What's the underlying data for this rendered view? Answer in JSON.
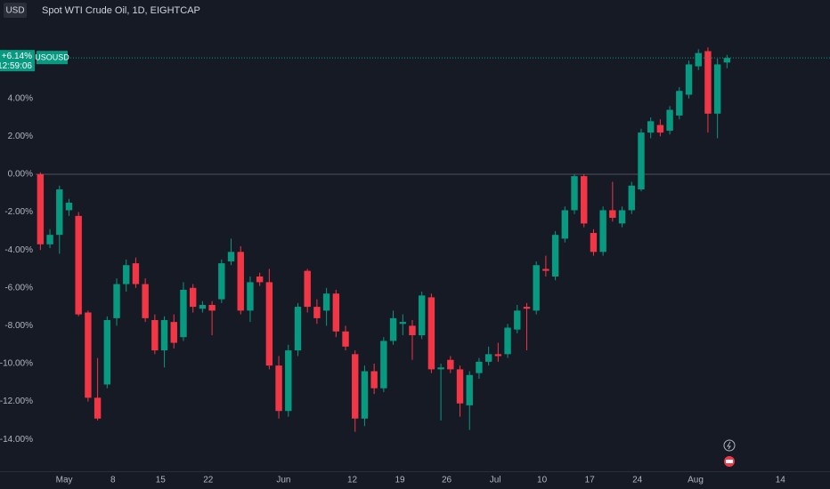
{
  "chart_data": {
    "type": "candlestick",
    "title": "Spot WTI Crude Oil, 1D, EIGHTCAP",
    "currency": "USD",
    "symbol": "USOUSD",
    "last_price": 6.14,
    "last_price_label": "+6.14%",
    "countdown": "12:59:06",
    "up_color": "#089981",
    "down_color": "#f23645",
    "grid": false,
    "ylim": [
      -15.68,
      9.2
    ],
    "yticks": [
      {
        "value": -14,
        "label": "-14.00%"
      },
      {
        "value": -12,
        "label": "-12.00%"
      },
      {
        "value": -10,
        "label": "-10.00%"
      },
      {
        "value": -8,
        "label": "-8.00%"
      },
      {
        "value": -6,
        "label": "-6.00%"
      },
      {
        "value": -4,
        "label": "-4.00%"
      },
      {
        "value": -2,
        "label": "-2.00%"
      },
      {
        "value": 0,
        "label": "0.00%"
      },
      {
        "value": 2,
        "label": "2.00%"
      },
      {
        "value": 4,
        "label": "4.00%"
      }
    ],
    "xlim": [
      -0.5,
      82.8
    ],
    "xticks": [
      {
        "value": 2.5,
        "label": "May"
      },
      {
        "value": 7.6,
        "label": "8"
      },
      {
        "value": 12.6,
        "label": "15"
      },
      {
        "value": 17.6,
        "label": "22"
      },
      {
        "value": 25.5,
        "label": "Jun"
      },
      {
        "value": 32.7,
        "label": "12"
      },
      {
        "value": 37.7,
        "label": "19"
      },
      {
        "value": 42.6,
        "label": "26"
      },
      {
        "value": 47.7,
        "label": "Jul"
      },
      {
        "value": 52.6,
        "label": "10"
      },
      {
        "value": 57.6,
        "label": "17"
      },
      {
        "value": 62.6,
        "label": "24"
      },
      {
        "value": 68.7,
        "label": "Aug"
      },
      {
        "value": 77.6,
        "label": "14"
      }
    ],
    "open": [
      0,
      -3.7,
      -3.2,
      -1.9,
      -2.2,
      -7.3,
      -11.8,
      -11.1,
      -7.6,
      -5.8,
      -4.7,
      -5.8,
      -7.7,
      -9.3,
      -7.8,
      -8.6,
      -6.0,
      -7.1,
      -6.9,
      -6.6,
      -4.6,
      -4.1,
      -7.2,
      -5.4,
      -5.7,
      -10.1,
      -12.5,
      -9.3,
      -5.1,
      -7.0,
      -7.2,
      -6.3,
      -8.3,
      -9.5,
      -12.9,
      -10.4,
      -11.3,
      -8.8,
      -7.9,
      -8.0,
      -8.5,
      -6.5,
      -10.3,
      -9.8,
      -10.3,
      -12.2,
      -10.5,
      -9.9,
      -9.5,
      -9.5,
      -8.2,
      -7.0,
      -7.2,
      -5.0,
      -5.4,
      -3.4,
      -1.9,
      -0.1,
      -3.1,
      -4.1,
      -1.9,
      -2.6,
      -1.9,
      -0.8,
      2.2,
      2.6,
      2.3,
      3.1,
      4.2,
      5.7,
      6.5,
      3.2,
      5.9
    ],
    "high": [
      0.1,
      -2.9,
      -0.6,
      -1.3,
      -2.0,
      -7.2,
      -9.7,
      -7.5,
      -5.5,
      -4.5,
      -4.4,
      -5.5,
      -7.4,
      -7.5,
      -7.4,
      -5.7,
      -5.8,
      -6.7,
      -6.7,
      -4.5,
      -3.4,
      -3.8,
      -5.4,
      -5.2,
      -5.0,
      -9.6,
      -9.0,
      -6.8,
      -5.0,
      -6.6,
      -6.0,
      -6.1,
      -8.0,
      -9.3,
      -10.1,
      -10.0,
      -8.6,
      -7.2,
      -7.4,
      -7.7,
      -6.2,
      -6.3,
      -10.0,
      -9.6,
      -10.1,
      -10.4,
      -9.7,
      -9.1,
      -8.9,
      -7.9,
      -6.9,
      -6.8,
      -4.6,
      -4.3,
      -3.0,
      -1.7,
      0.0,
      0.0,
      -2.9,
      -1.7,
      -0.4,
      -1.7,
      -0.4,
      2.4,
      3.0,
      2.9,
      3.6,
      4.6,
      6.0,
      6.6,
      6.7,
      6.1,
      6.3
    ],
    "low": [
      -4.0,
      -3.9,
      -4.2,
      -2.2,
      -7.5,
      -12.0,
      -13.0,
      -11.3,
      -8.0,
      -6.2,
      -6.0,
      -7.8,
      -9.5,
      -10.2,
      -9.2,
      -8.8,
      -7.3,
      -7.3,
      -8.5,
      -6.8,
      -4.8,
      -7.4,
      -7.8,
      -5.9,
      -10.3,
      -12.9,
      -12.8,
      -9.6,
      -7.3,
      -7.9,
      -8.0,
      -8.6,
      -9.3,
      -13.6,
      -13.3,
      -11.6,
      -11.5,
      -9.0,
      -8.5,
      -9.8,
      -8.7,
      -10.5,
      -13.0,
      -10.5,
      -12.8,
      -13.5,
      -10.8,
      -10.1,
      -9.9,
      -9.7,
      -8.4,
      -9.3,
      -7.4,
      -5.4,
      -5.6,
      -3.6,
      -2.1,
      -2.8,
      -4.3,
      -4.3,
      -2.5,
      -2.8,
      -2.1,
      -0.9,
      1.9,
      2.0,
      2.1,
      2.9,
      4.0,
      5.5,
      2.2,
      1.9,
      5.6
    ],
    "close": [
      -3.7,
      -3.2,
      -0.8,
      -1.5,
      -7.4,
      -11.8,
      -12.9,
      -7.7,
      -5.8,
      -4.8,
      -5.8,
      -7.6,
      -9.3,
      -7.7,
      -8.9,
      -6.1,
      -7.0,
      -6.9,
      -7.2,
      -4.7,
      -4.1,
      -7.2,
      -5.7,
      -5.7,
      -10.1,
      -12.5,
      -9.3,
      -7.0,
      -7.0,
      -7.6,
      -6.3,
      -8.3,
      -9.1,
      -12.9,
      -10.4,
      -11.3,
      -8.8,
      -7.6,
      -7.8,
      -8.5,
      -6.4,
      -10.3,
      -10.2,
      -10.3,
      -12.1,
      -10.6,
      -9.9,
      -9.5,
      -9.6,
      -8.1,
      -7.2,
      -7.1,
      -4.8,
      -5.1,
      -3.2,
      -1.9,
      -0.1,
      -2.6,
      -4.1,
      -1.9,
      -2.3,
      -1.9,
      -0.6,
      2.2,
      2.8,
      2.2,
      3.4,
      4.4,
      5.8,
      6.4,
      3.2,
      5.8,
      6.14
    ]
  }
}
